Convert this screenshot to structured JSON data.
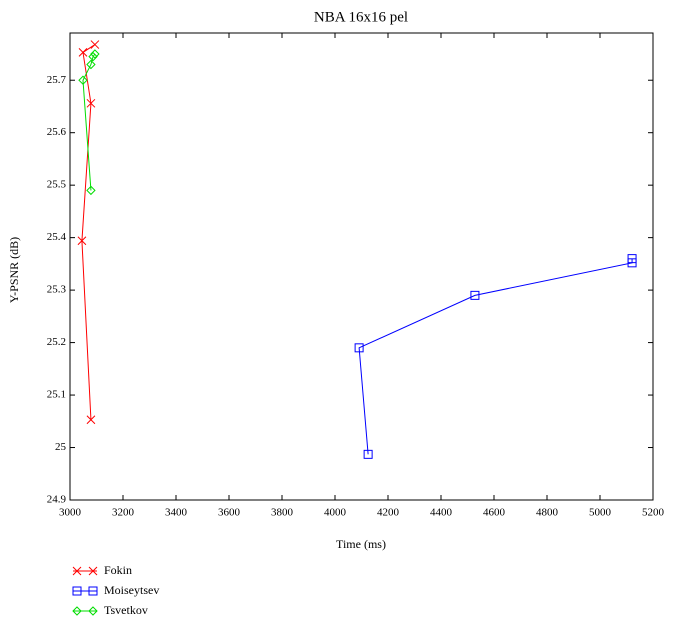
{
  "chart_data": {
    "type": "line",
    "title": "NBA 16x16 pel",
    "x_label": "Time (ms)",
    "y_label": "Y-PSNR (dB)",
    "xlim": [
      3000,
      5200
    ],
    "xticks": [
      3000,
      3200,
      3400,
      3600,
      3800,
      4000,
      4200,
      4400,
      4600,
      4800,
      5000,
      5200
    ],
    "ylim": [
      24.9,
      25.79
    ],
    "yticks": [
      24.9,
      25,
      25.1,
      25.2,
      25.3,
      25.4,
      25.5,
      25.6,
      25.7
    ],
    "grid": false,
    "legend": "below-left",
    "series": [
      {
        "name": "Fokin",
        "color": "#ff0000",
        "marker": "x",
        "x": [
          3079,
          3045,
          3079,
          3049,
          3094
        ],
        "values": [
          25.053,
          25.394,
          25.656,
          25.753,
          25.768
        ]
      },
      {
        "name": "Moiseytsev",
        "color": "#0000ff",
        "marker": "square",
        "x": [
          4125,
          4091,
          4528,
          5121,
          5121
        ],
        "values": [
          24.987,
          25.19,
          25.29,
          25.352,
          25.36
        ]
      },
      {
        "name": "Tsvetkov",
        "color": "#00dd00",
        "marker": "diamond",
        "x": [
          3079,
          3049,
          3079,
          3087,
          3094
        ],
        "values": [
          25.49,
          25.7,
          25.73,
          25.745,
          25.75
        ]
      }
    ]
  }
}
